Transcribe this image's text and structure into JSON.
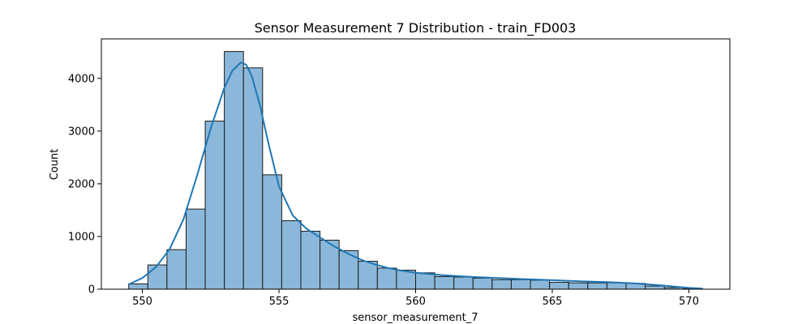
{
  "chart_data": {
    "type": "bar",
    "title": "Sensor Measurement 7 Distribution - train_FD003",
    "xlabel": "sensor_measurement_7",
    "ylabel": "Count",
    "xlim": [
      548.5,
      571.5
    ],
    "ylim": [
      0,
      4750
    ],
    "x_ticks": [
      550,
      555,
      560,
      565,
      570
    ],
    "y_ticks": [
      0,
      1000,
      2000,
      3000,
      4000
    ],
    "grid": false,
    "legend": "none",
    "bin_width": 0.7,
    "bins": [
      {
        "start": 549.5,
        "end": 550.2,
        "count": 100
      },
      {
        "start": 550.2,
        "end": 550.9,
        "count": 460
      },
      {
        "start": 550.9,
        "end": 551.6,
        "count": 750
      },
      {
        "start": 551.6,
        "end": 552.3,
        "count": 1520
      },
      {
        "start": 552.3,
        "end": 553.0,
        "count": 3190
      },
      {
        "start": 553.0,
        "end": 553.7,
        "count": 4510
      },
      {
        "start": 553.7,
        "end": 554.4,
        "count": 4200
      },
      {
        "start": 554.4,
        "end": 555.1,
        "count": 2170
      },
      {
        "start": 555.1,
        "end": 555.8,
        "count": 1300
      },
      {
        "start": 555.8,
        "end": 556.5,
        "count": 1100
      },
      {
        "start": 556.5,
        "end": 557.2,
        "count": 930
      },
      {
        "start": 557.2,
        "end": 557.9,
        "count": 730
      },
      {
        "start": 557.9,
        "end": 558.6,
        "count": 530
      },
      {
        "start": 558.6,
        "end": 559.3,
        "count": 400
      },
      {
        "start": 559.3,
        "end": 560.0,
        "count": 360
      },
      {
        "start": 560.0,
        "end": 560.7,
        "count": 310
      },
      {
        "start": 560.7,
        "end": 561.4,
        "count": 240
      },
      {
        "start": 561.4,
        "end": 562.1,
        "count": 230
      },
      {
        "start": 562.1,
        "end": 562.8,
        "count": 210
      },
      {
        "start": 562.8,
        "end": 563.5,
        "count": 180
      },
      {
        "start": 563.5,
        "end": 564.2,
        "count": 180
      },
      {
        "start": 564.2,
        "end": 564.9,
        "count": 170
      },
      {
        "start": 564.9,
        "end": 565.6,
        "count": 130
      },
      {
        "start": 565.6,
        "end": 566.3,
        "count": 120
      },
      {
        "start": 566.3,
        "end": 567.0,
        "count": 120
      },
      {
        "start": 567.0,
        "end": 567.7,
        "count": 120
      },
      {
        "start": 567.7,
        "end": 568.4,
        "count": 110
      },
      {
        "start": 568.4,
        "end": 569.1,
        "count": 60
      },
      {
        "start": 569.1,
        "end": 569.8,
        "count": 30
      },
      {
        "start": 569.8,
        "end": 570.5,
        "count": 10
      }
    ],
    "kde": {
      "x": [
        549.5,
        550.0,
        550.5,
        551.0,
        551.5,
        552.0,
        552.5,
        553.0,
        553.3,
        553.6,
        553.8,
        554.0,
        554.3,
        554.6,
        555.0,
        555.5,
        556.0,
        556.5,
        557.0,
        557.5,
        558.0,
        558.5,
        559.0,
        559.5,
        560.0,
        561.0,
        562.0,
        563.0,
        564.0,
        565.0,
        566.0,
        567.0,
        568.0,
        569.0,
        570.0,
        570.5
      ],
      "y": [
        90,
        210,
        420,
        760,
        1320,
        2150,
        3050,
        3820,
        4150,
        4300,
        4260,
        4050,
        3500,
        2800,
        1950,
        1400,
        1150,
        980,
        820,
        680,
        560,
        470,
        400,
        350,
        310,
        265,
        235,
        210,
        190,
        170,
        150,
        135,
        110,
        70,
        25,
        10
      ]
    },
    "colors": {
      "bar_fill": "#8bb8da",
      "bar_edge": "#1a1a1a",
      "kde_line": "#1f77b4"
    }
  }
}
